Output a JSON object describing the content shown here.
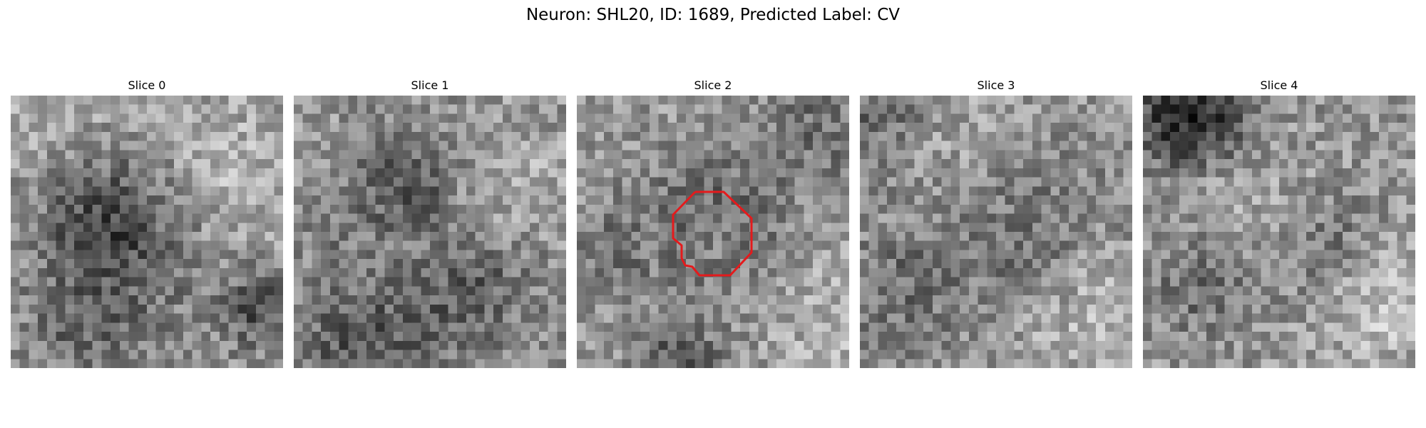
{
  "figure": {
    "title": "Neuron: SHL20, ID: 1689, Predicted Label: CV"
  },
  "panels": [
    {
      "title": "Slice 0",
      "has_contour": false
    },
    {
      "title": "Slice 1",
      "has_contour": false
    },
    {
      "title": "Slice 2",
      "has_contour": true
    },
    {
      "title": "Slice 3",
      "has_contour": false
    },
    {
      "title": "Slice 4",
      "has_contour": false
    }
  ],
  "colors": {
    "contour": "#e41a1c",
    "background": "#ffffff"
  }
}
